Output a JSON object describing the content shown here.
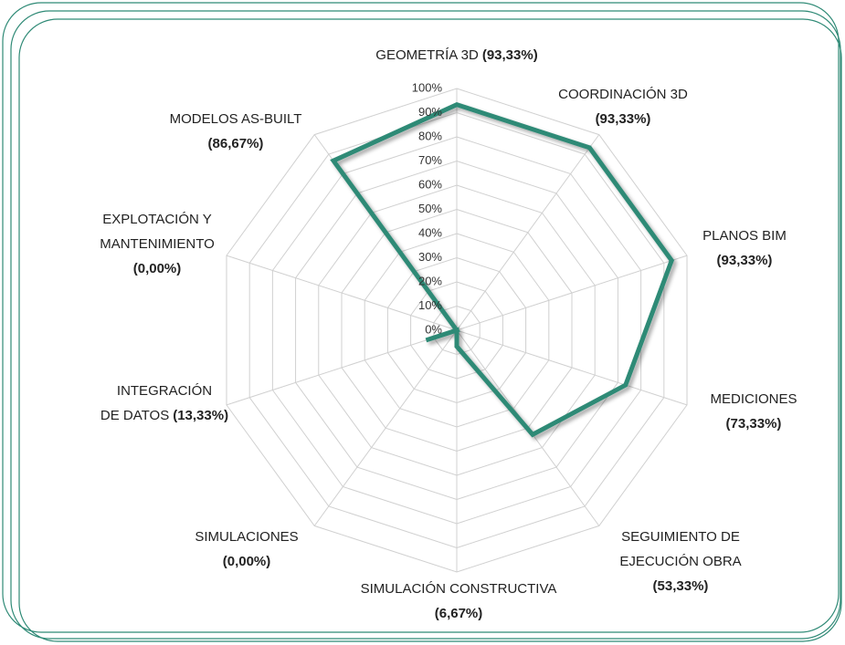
{
  "chart_data": {
    "type": "radar",
    "categories": [
      "GEOMETRÍA 3D",
      "COORDINACIÓN 3D",
      "PLANOS BIM",
      "MEDICIONES",
      "SEGUIMIENTO DE\nEJECUCIÓN OBRA",
      "SIMULACIÓN CONSTRUCTIVA",
      "SIMULACIONES",
      "INTEGRACIÓN\nDE DATOS",
      "EXPLOTACIÓN Y\nMANTENIMIENTO",
      "MODELOS AS-BUILT"
    ],
    "values": [
      93.33,
      93.33,
      93.33,
      73.33,
      53.33,
      6.67,
      0.0,
      13.33,
      0.0,
      86.67
    ],
    "value_labels": [
      "(93,33%)",
      "(93,33%)",
      "(93,33%)",
      "(73,33%)",
      "(53,33%)",
      "(6,67%)",
      "(0,00%)",
      "(13,33%)",
      "(0,00%)",
      "(86,67%)"
    ],
    "color": "#2f8a76",
    "rlim": [
      0,
      100
    ],
    "rticks": [
      {
        "value": 0,
        "label": "0%"
      },
      {
        "value": 10,
        "label": "10%"
      },
      {
        "value": 20,
        "label": "20%"
      },
      {
        "value": 30,
        "label": "30%"
      },
      {
        "value": 40,
        "label": "40%"
      },
      {
        "value": 50,
        "label": "50%"
      },
      {
        "value": 60,
        "label": "60%"
      },
      {
        "value": 70,
        "label": "70%"
      },
      {
        "value": 80,
        "label": "80%"
      },
      {
        "value": 90,
        "label": "90%"
      },
      {
        "value": 100,
        "label": "100%"
      }
    ],
    "grid": true
  }
}
